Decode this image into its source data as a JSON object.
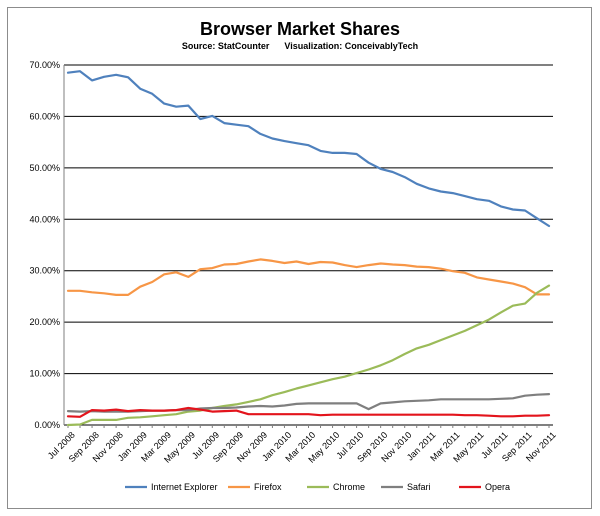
{
  "chart_data": {
    "type": "line",
    "title": "Browser Market Shares",
    "subtitle": "Source: StatCounter      Visualization: ConceivablyTech",
    "xlabel": "",
    "ylabel": "",
    "ylim": [
      0,
      70
    ],
    "yticks": [
      "0.00%",
      "10.00%",
      "20.00%",
      "30.00%",
      "40.00%",
      "50.00%",
      "60.00%",
      "70.00%"
    ],
    "ytick_values": [
      0,
      10,
      20,
      30,
      40,
      50,
      60,
      70
    ],
    "grid": true,
    "legend_position": "bottom",
    "x": [
      "Jul 2008",
      "Aug 2008",
      "Sep 2008",
      "Oct 2008",
      "Nov 2008",
      "Dec 2008",
      "Jan 2009",
      "Feb 2009",
      "Mar 2009",
      "Apr 2009",
      "May 2009",
      "Jun 2009",
      "Jul 2009",
      "Aug 2009",
      "Sep 2009",
      "Oct 2009",
      "Nov 2009",
      "Dec 2009",
      "Jan 2010",
      "Feb 2010",
      "Mar 2010",
      "Apr 2010",
      "May 2010",
      "Jun 2010",
      "Jul 2010",
      "Aug 2010",
      "Sep 2010",
      "Oct 2010",
      "Nov 2010",
      "Dec 2010",
      "Jan 2011",
      "Feb 2011",
      "Mar 2011",
      "Apr 2011",
      "May 2011",
      "Jun 2011",
      "Jul 2011",
      "Aug 2011",
      "Sep 2011",
      "Oct 2011",
      "Nov 2011"
    ],
    "x_tick_labels": [
      "Jul 2008",
      "Sep 2008",
      "Nov 2008",
      "Jan 2009",
      "Mar 2009",
      "May 2009",
      "Jul 2009",
      "Sep 2009",
      "Nov 2009",
      "Jan 2010",
      "Mar 2010",
      "May 2010",
      "Jul 2010",
      "Sep 2010",
      "Nov 2010",
      "Jan 2011",
      "Mar 2011",
      "May 2011",
      "Jul 2011",
      "Sep 2011",
      "Nov 2011"
    ],
    "series": [
      {
        "name": "Internet Explorer",
        "color": "#4f81bd",
        "values": [
          68.5,
          68.8,
          67.0,
          67.7,
          68.1,
          67.6,
          65.4,
          64.4,
          62.5,
          61.9,
          62.1,
          59.5,
          60.1,
          58.7,
          58.4,
          58.1,
          56.6,
          55.7,
          55.2,
          54.8,
          54.4,
          53.3,
          52.9,
          52.9,
          52.7,
          51.0,
          49.8,
          49.2,
          48.2,
          46.9,
          46.0,
          45.4,
          45.1,
          44.5,
          43.9,
          43.6,
          42.5,
          41.9,
          41.7,
          40.2,
          38.7
        ]
      },
      {
        "name": "Firefox",
        "color": "#f79646",
        "values": [
          26.1,
          26.1,
          25.8,
          25.6,
          25.3,
          25.3,
          26.9,
          27.8,
          29.3,
          29.7,
          28.8,
          30.3,
          30.5,
          31.2,
          31.3,
          31.8,
          32.2,
          31.9,
          31.5,
          31.8,
          31.3,
          31.7,
          31.6,
          31.1,
          30.7,
          31.1,
          31.4,
          31.2,
          31.1,
          30.8,
          30.7,
          30.4,
          29.9,
          29.6,
          28.7,
          28.3,
          27.9,
          27.5,
          26.8,
          25.4,
          25.4
        ]
      },
      {
        "name": "Chrome",
        "color": "#9bbb59",
        "values": [
          0.0,
          0.1,
          1.0,
          1.0,
          1.0,
          1.4,
          1.5,
          1.7,
          1.9,
          2.1,
          2.6,
          2.8,
          3.3,
          3.7,
          4.0,
          4.5,
          5.0,
          5.8,
          6.4,
          7.1,
          7.7,
          8.3,
          8.9,
          9.4,
          10.1,
          10.8,
          11.6,
          12.6,
          13.8,
          14.9,
          15.6,
          16.5,
          17.4,
          18.3,
          19.4,
          20.5,
          21.9,
          23.2,
          23.6,
          25.7,
          27.1
        ]
      },
      {
        "name": "Safari",
        "color": "#7f7f7f",
        "values": [
          2.7,
          2.6,
          2.7,
          2.6,
          2.6,
          2.6,
          2.7,
          2.8,
          2.8,
          2.9,
          2.9,
          3.2,
          3.3,
          3.3,
          3.4,
          3.6,
          3.7,
          3.6,
          3.8,
          4.1,
          4.2,
          4.2,
          4.2,
          4.2,
          4.2,
          3.1,
          4.2,
          4.4,
          4.6,
          4.7,
          4.8,
          5.0,
          5.0,
          5.0,
          5.0,
          5.0,
          5.1,
          5.2,
          5.7,
          5.9,
          6.0
        ]
      },
      {
        "name": "Opera",
        "color": "#e3141c",
        "values": [
          1.7,
          1.6,
          2.9,
          2.8,
          3.0,
          2.7,
          2.9,
          2.8,
          2.8,
          2.9,
          3.3,
          3.0,
          2.6,
          2.7,
          2.8,
          2.1,
          2.1,
          2.1,
          2.1,
          2.1,
          2.1,
          1.9,
          2.0,
          2.0,
          2.0,
          2.0,
          2.0,
          2.0,
          2.0,
          2.0,
          2.0,
          2.0,
          2.0,
          1.9,
          1.9,
          1.8,
          1.7,
          1.7,
          1.8,
          1.8,
          1.9
        ]
      }
    ]
  }
}
